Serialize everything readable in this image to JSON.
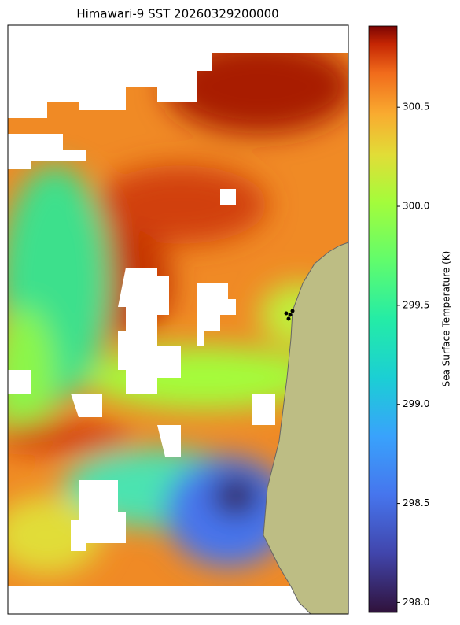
{
  "title": "Himawari-9 SST 20260329200000",
  "colorbar": {
    "label": "Sea Surface Temperature (K)",
    "lim": [
      297.95,
      300.91
    ],
    "ticks": [
      {
        "value": 298,
        "label": "298.0"
      },
      {
        "value": 298.5,
        "label": "298.5"
      },
      {
        "value": 299,
        "label": "299.0"
      },
      {
        "value": 299.5,
        "label": "299.5"
      },
      {
        "value": 300,
        "label": "300.0"
      },
      {
        "value": 300.5,
        "label": "300.5"
      }
    ]
  }
}
